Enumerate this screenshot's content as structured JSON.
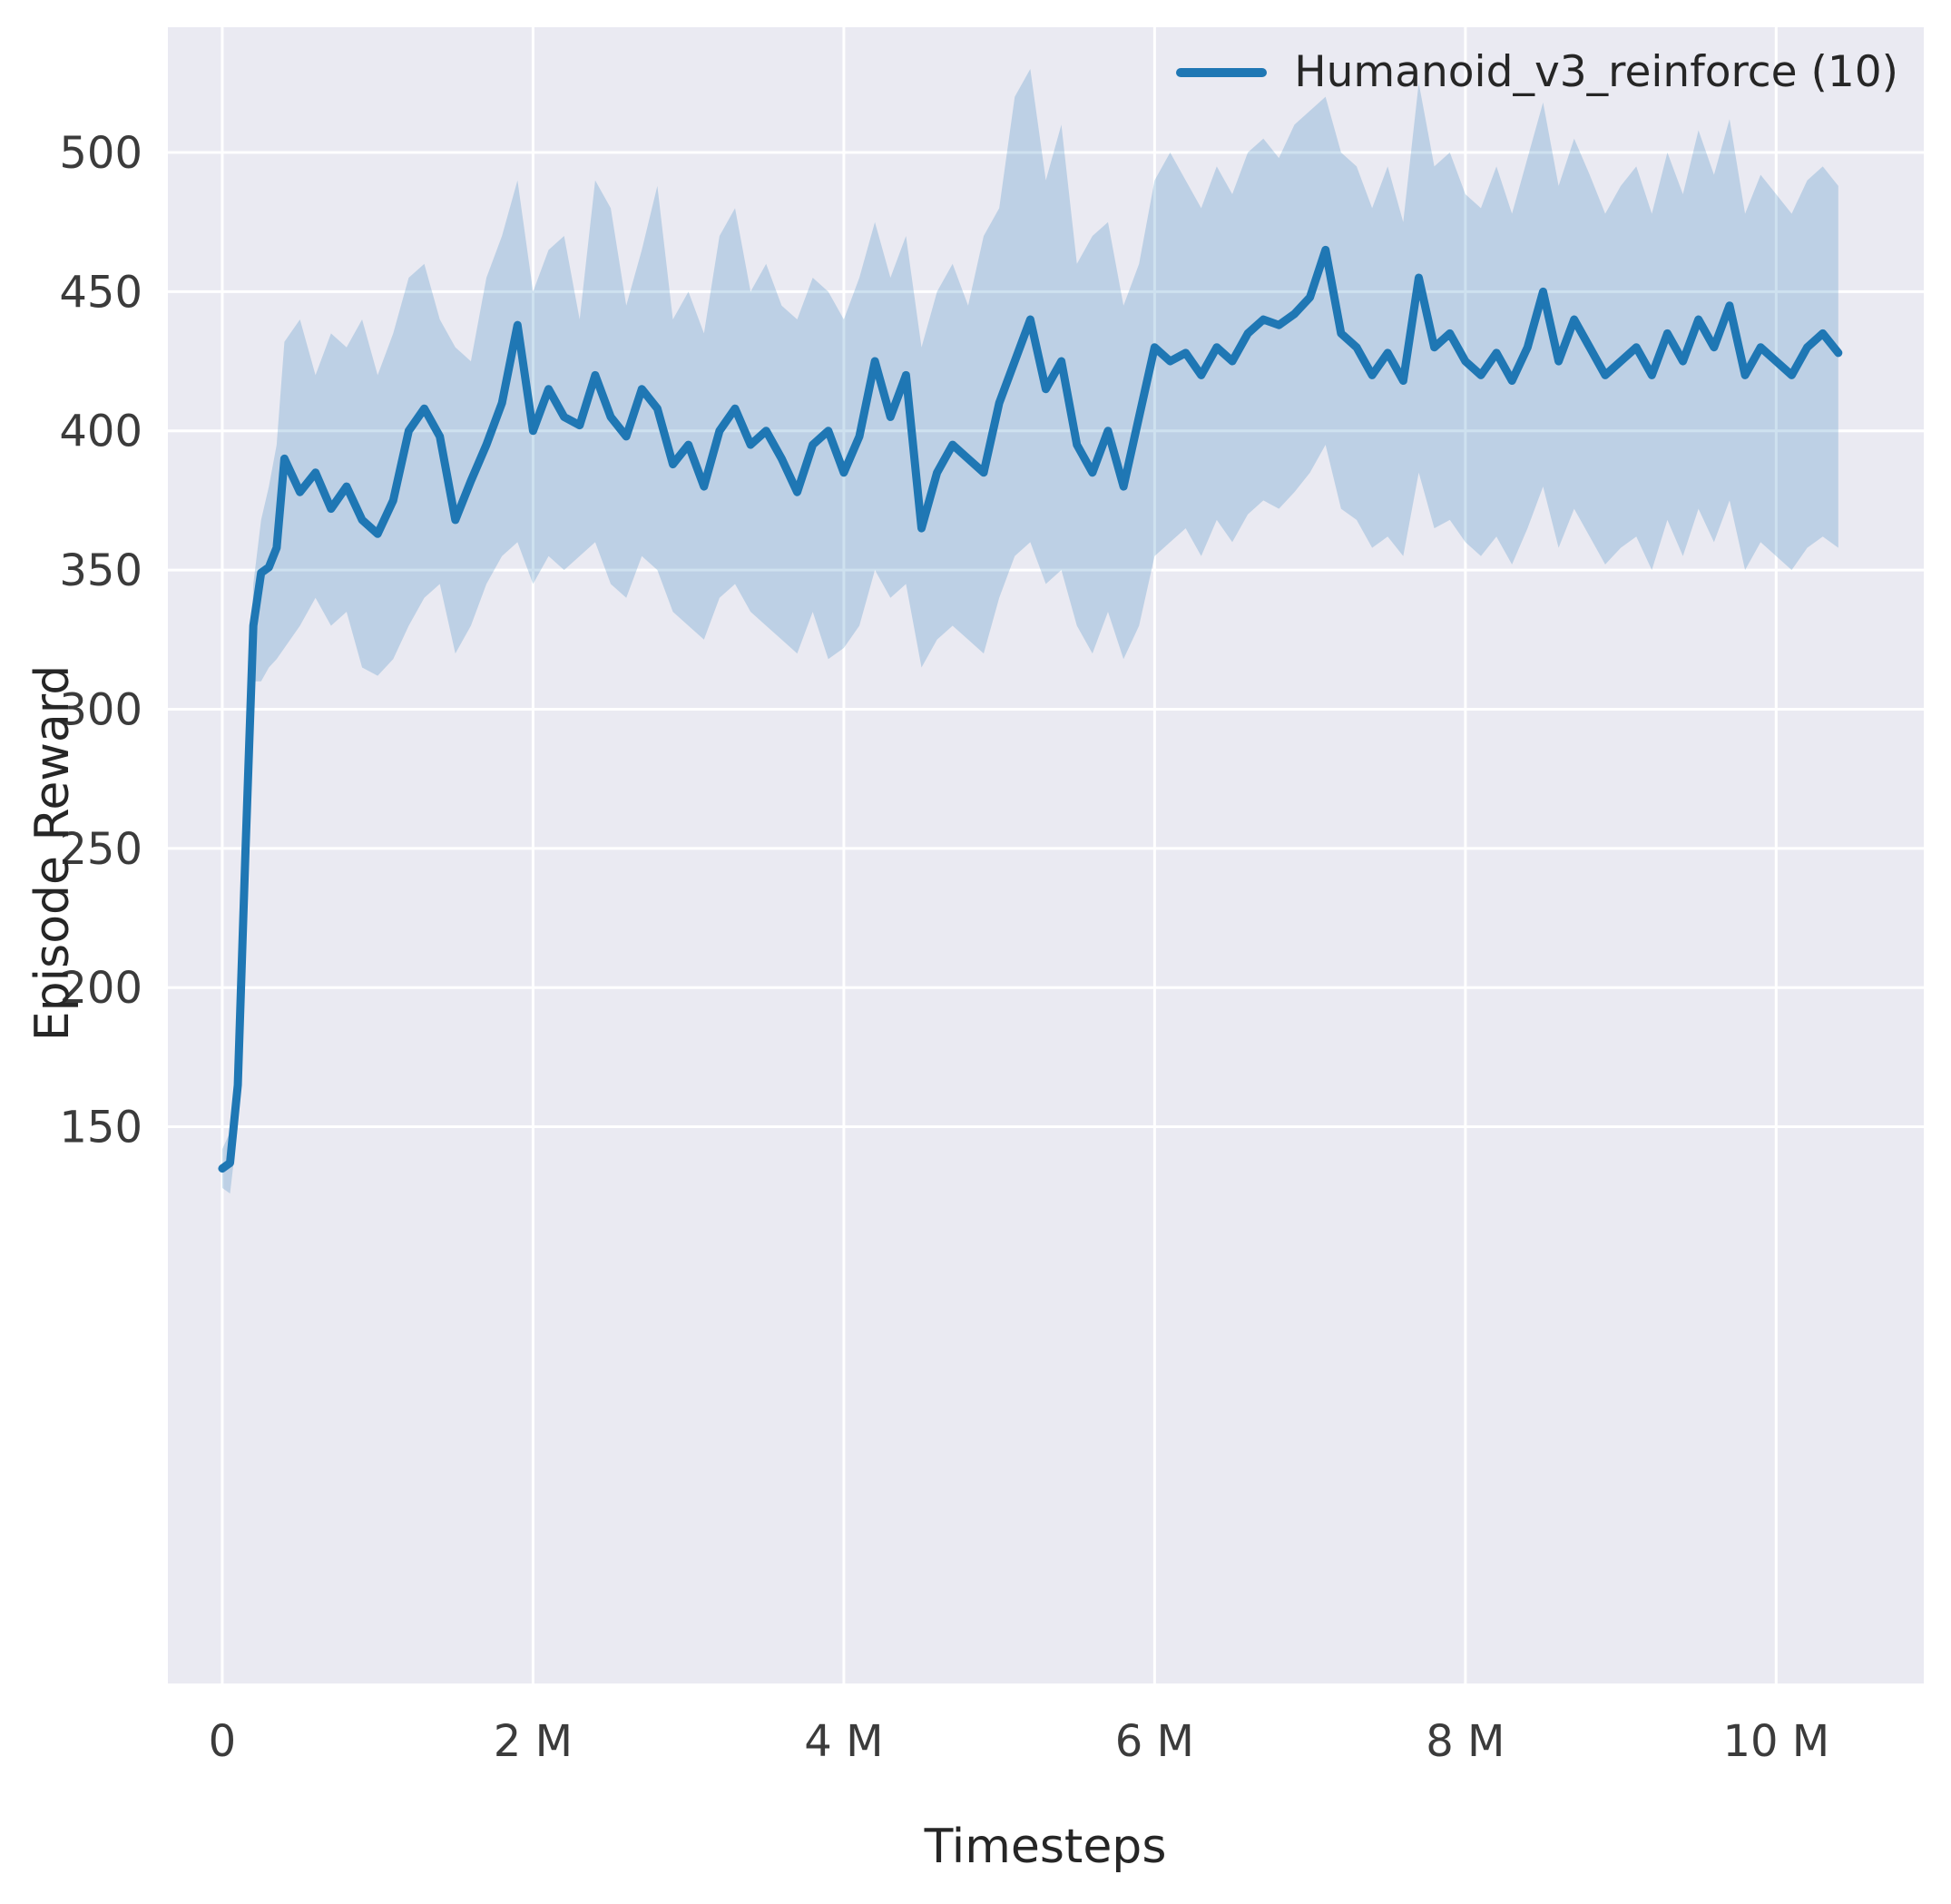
{
  "chart_data": {
    "type": "line",
    "title": "",
    "xlabel": "Timesteps",
    "ylabel": "Episode Reward",
    "x_unit": "millions",
    "xlim": [
      -0.35,
      10.95
    ],
    "ylim": [
      -50,
      545
    ],
    "grid": true,
    "legend_position": "upper right",
    "x_ticks": [
      {
        "value": 0,
        "label": "0"
      },
      {
        "value": 2,
        "label": "2 M"
      },
      {
        "value": 4,
        "label": "4 M"
      },
      {
        "value": 6,
        "label": "6 M"
      },
      {
        "value": 8,
        "label": "8 M"
      },
      {
        "value": 10,
        "label": "10 M"
      }
    ],
    "y_ticks": [
      150,
      200,
      250,
      300,
      350,
      400,
      450,
      500
    ],
    "colors": {
      "line": "#1f77b4",
      "band": "#1f77b4",
      "band_opacity": 0.22,
      "plot_bg": "#eaeaf2",
      "grid": "#ffffff",
      "tick_text": "#3b3b3b",
      "label_text": "#262626"
    },
    "series": [
      {
        "name": "Humanoid_v3_reinforce (10)",
        "x": [
          0,
          0.05,
          0.1,
          0.15,
          0.2,
          0.25,
          0.3,
          0.35,
          0.4,
          0.5,
          0.6,
          0.7,
          0.8,
          0.9,
          1.0,
          1.1,
          1.2,
          1.3,
          1.4,
          1.5,
          1.6,
          1.7,
          1.8,
          1.9,
          2.0,
          2.1,
          2.2,
          2.3,
          2.4,
          2.5,
          2.6,
          2.7,
          2.8,
          2.9,
          3.0,
          3.1,
          3.2,
          3.3,
          3.4,
          3.5,
          3.6,
          3.7,
          3.8,
          3.9,
          4.0,
          4.1,
          4.2,
          4.3,
          4.4,
          4.5,
          4.6,
          4.7,
          4.8,
          4.9,
          5.0,
          5.1,
          5.2,
          5.3,
          5.4,
          5.5,
          5.6,
          5.7,
          5.8,
          5.9,
          6.0,
          6.1,
          6.2,
          6.3,
          6.4,
          6.5,
          6.6,
          6.7,
          6.8,
          6.9,
          7.0,
          7.1,
          7.2,
          7.3,
          7.4,
          7.5,
          7.6,
          7.7,
          7.8,
          7.9,
          8.0,
          8.1,
          8.2,
          8.3,
          8.4,
          8.5,
          8.6,
          8.7,
          8.8,
          8.9,
          9.0,
          9.1,
          9.2,
          9.3,
          9.4,
          9.5,
          9.6,
          9.7,
          9.8,
          9.9,
          10.0,
          10.1,
          10.2,
          10.3,
          10.4
        ],
        "mean": [
          135,
          137,
          165,
          250,
          330,
          349,
          351,
          358,
          390,
          378,
          385,
          372,
          380,
          368,
          363,
          375,
          400,
          408,
          398,
          368,
          382,
          395,
          410,
          438,
          400,
          415,
          405,
          402,
          420,
          405,
          398,
          415,
          408,
          388,
          395,
          380,
          400,
          408,
          395,
          400,
          390,
          378,
          395,
          400,
          385,
          398,
          425,
          405,
          420,
          365,
          385,
          395,
          390,
          385,
          410,
          425,
          440,
          415,
          425,
          395,
          385,
          400,
          380,
          405,
          430,
          425,
          428,
          420,
          430,
          425,
          435,
          440,
          438,
          442,
          448,
          465,
          435,
          430,
          420,
          428,
          418,
          455,
          430,
          435,
          425,
          420,
          428,
          418,
          430,
          450,
          425,
          440,
          430,
          420,
          425,
          430,
          420,
          435,
          425,
          440,
          430,
          445,
          420,
          430,
          425,
          420,
          430,
          435,
          428
        ],
        "band_low": [
          128,
          126,
          150,
          235,
          310,
          310,
          315,
          318,
          322,
          330,
          340,
          330,
          335,
          315,
          312,
          318,
          330,
          340,
          345,
          320,
          330,
          345,
          355,
          360,
          345,
          355,
          350,
          355,
          360,
          345,
          340,
          355,
          350,
          335,
          330,
          325,
          340,
          345,
          335,
          330,
          325,
          320,
          335,
          318,
          322,
          330,
          350,
          340,
          345,
          315,
          325,
          330,
          325,
          320,
          340,
          355,
          360,
          345,
          350,
          330,
          320,
          335,
          318,
          330,
          355,
          360,
          365,
          355,
          368,
          360,
          370,
          375,
          372,
          378,
          385,
          395,
          372,
          368,
          358,
          362,
          355,
          385,
          365,
          368,
          360,
          355,
          362,
          352,
          365,
          380,
          358,
          372,
          362,
          352,
          358,
          362,
          350,
          368,
          355,
          372,
          360,
          375,
          350,
          360,
          355,
          350,
          358,
          362,
          358
        ],
        "band_high": [
          142,
          148,
          180,
          262,
          345,
          368,
          380,
          395,
          432,
          440,
          420,
          435,
          430,
          440,
          420,
          435,
          455,
          460,
          440,
          430,
          425,
          455,
          470,
          490,
          450,
          465,
          470,
          440,
          490,
          480,
          445,
          465,
          488,
          440,
          450,
          435,
          470,
          480,
          450,
          460,
          445,
          440,
          455,
          450,
          440,
          455,
          475,
          455,
          470,
          430,
          450,
          460,
          445,
          470,
          480,
          520,
          530,
          490,
          510,
          460,
          470,
          475,
          445,
          460,
          490,
          500,
          490,
          480,
          495,
          485,
          500,
          505,
          498,
          510,
          515,
          520,
          500,
          495,
          480,
          495,
          475,
          525,
          495,
          500,
          485,
          480,
          495,
          478,
          498,
          518,
          488,
          505,
          492,
          478,
          488,
          495,
          478,
          500,
          485,
          508,
          492,
          512,
          478,
          492,
          485,
          478,
          490,
          495,
          488
        ]
      }
    ]
  }
}
